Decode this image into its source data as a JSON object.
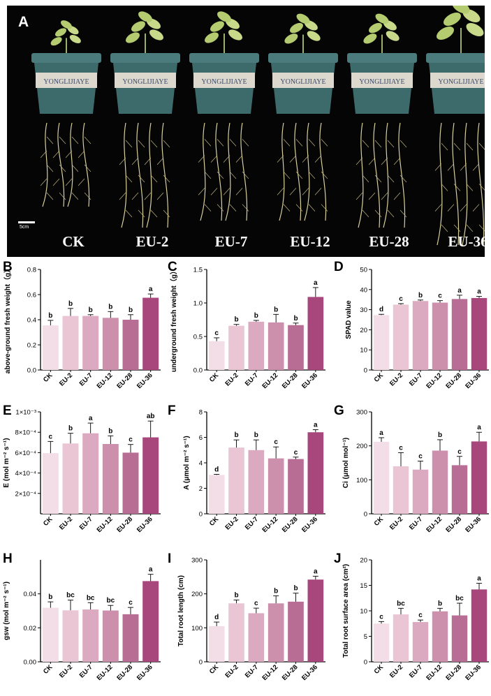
{
  "figure": {
    "panel_a_letter": "A",
    "scale_label": "5cm",
    "treatments": [
      "CK",
      "EU-2",
      "EU-7",
      "EU-12",
      "EU-28",
      "EU-36"
    ],
    "pot_labels": [
      "YONGLIJIAYE",
      "YONGLIJIAYE",
      "YONGLIJIAYE",
      "YONGLIJIAYE",
      "YONGLIJIAYE",
      "YONGLIJIAYE"
    ]
  },
  "colors": {
    "bars": [
      "#f3dde6",
      "#eac5d3",
      "#dcaac0",
      "#cc8fac",
      "#b86d94",
      "#a8477b"
    ],
    "background_photo": "#050505",
    "pot": "#3d6a6b"
  },
  "chart_data": [
    {
      "panel": "B",
      "type": "bar",
      "categories": [
        "CK",
        "EU-2",
        "EU-7",
        "EU-12",
        "EU-28",
        "EU-36"
      ],
      "values": [
        0.355,
        0.43,
        0.43,
        0.415,
        0.4,
        0.575
      ],
      "errors": [
        0.04,
        0.06,
        0.01,
        0.05,
        0.04,
        0.03
      ],
      "letters": [
        "b",
        "b",
        "b",
        "b",
        "b",
        "a"
      ],
      "ylabel": "above-ground fresh weight（g）",
      "ylim": [
        0,
        0.8
      ],
      "yticks": [
        0.0,
        0.2,
        0.4,
        0.6,
        0.8
      ],
      "ytick_labels": [
        "0.0",
        "0.2",
        "0.4",
        "0.6",
        "0.8"
      ]
    },
    {
      "panel": "C",
      "type": "bar",
      "categories": [
        "CK",
        "EU-2",
        "EU-7",
        "EU-12",
        "EU-28",
        "EU-36"
      ],
      "values": [
        0.43,
        0.66,
        0.72,
        0.71,
        0.67,
        1.09
      ],
      "errors": [
        0.05,
        0.02,
        0.02,
        0.12,
        0.03,
        0.14
      ],
      "letters": [
        "c",
        "b",
        "b",
        "b",
        "b",
        "a"
      ],
      "ylabel": "underground fresh weight（g）",
      "ylim": [
        0,
        1.5
      ],
      "yticks": [
        0.0,
        0.5,
        1.0,
        1.5
      ],
      "ytick_labels": [
        "0.0",
        "0.5",
        "1.0",
        "1.5"
      ]
    },
    {
      "panel": "D",
      "type": "bar",
      "categories": [
        "CK",
        "EU-2",
        "EU-7",
        "EU-12",
        "EU-28",
        "EU-36"
      ],
      "values": [
        27.3,
        32.5,
        34.3,
        33.5,
        35.3,
        35.8
      ],
      "errors": [
        0.4,
        0.5,
        0.5,
        1.0,
        1.9,
        0.8
      ],
      "letters": [
        "d",
        "c",
        "b",
        "c",
        "a",
        "a"
      ],
      "ylabel": "SPAD value",
      "ylim": [
        0,
        50
      ],
      "yticks": [
        0,
        10,
        20,
        30,
        40,
        50
      ],
      "ytick_labels": [
        "0",
        "10",
        "20",
        "30",
        "40",
        "50"
      ]
    },
    {
      "panel": "E",
      "type": "bar",
      "categories": [
        "CK",
        "EU-2",
        "EU-7",
        "EU-12",
        "EU-28",
        "EU-36"
      ],
      "values": [
        0.000595,
        0.00069,
        0.00079,
        0.000685,
        0.0006,
        0.00075
      ],
      "errors": [
        0.000115,
        0.0001,
        0.0001,
        8e-05,
        8e-05,
        0.00016
      ],
      "letters": [
        "c",
        "b",
        "a",
        "b",
        "c",
        "ab"
      ],
      "ylabel": "E (mol m⁻² s⁻¹)",
      "ylim": [
        0,
        0.001
      ],
      "yticks": [
        0.0002,
        0.0004,
        0.0006,
        0.0008,
        0.001
      ],
      "ytick_labels": [
        "2×10⁻⁴",
        "4×10⁻⁴",
        "6×10⁻⁴",
        "8×10⁻⁴",
        "1×10⁻³"
      ]
    },
    {
      "panel": "F",
      "type": "bar",
      "categories": [
        "CK",
        "EU-2",
        "EU-7",
        "EU-12",
        "EU-28",
        "EU-36"
      ],
      "values": [
        3.05,
        5.2,
        5.0,
        4.35,
        4.3,
        6.4
      ],
      "errors": [
        0.05,
        0.6,
        0.8,
        0.9,
        0.15,
        0.2
      ],
      "letters": [
        "d",
        "b",
        "b",
        "c",
        "c",
        "a"
      ],
      "ylabel": "A (μmol m⁻² s⁻¹)",
      "ylim": [
        0,
        8
      ],
      "yticks": [
        0,
        2,
        4,
        6,
        8
      ],
      "ytick_labels": [
        "0",
        "2",
        "4",
        "6",
        "8"
      ]
    },
    {
      "panel": "G",
      "type": "bar",
      "categories": [
        "CK",
        "EU-2",
        "EU-7",
        "EU-12",
        "EU-28",
        "EU-36"
      ],
      "values": [
        212,
        140,
        130,
        186,
        143,
        213
      ],
      "errors": [
        12,
        40,
        25,
        32,
        26,
        27
      ],
      "letters": [
        "a",
        "c",
        "c",
        "b",
        "c",
        "a"
      ],
      "ylabel": "Ci (μmol mol⁻¹)",
      "ylim": [
        0,
        300
      ],
      "yticks": [
        0,
        100,
        200,
        300
      ],
      "ytick_labels": [
        "0",
        "100",
        "200",
        "300"
      ]
    },
    {
      "panel": "H",
      "type": "bar",
      "categories": [
        "CK",
        "EU-2",
        "EU-7",
        "EU-12",
        "EU-28",
        "EU-36"
      ],
      "values": [
        0.0318,
        0.0303,
        0.0308,
        0.0302,
        0.028,
        0.0475
      ],
      "errors": [
        0.0035,
        0.006,
        0.004,
        0.003,
        0.004,
        0.004
      ],
      "letters": [
        "b",
        "bc",
        "bc",
        "bc",
        "c",
        "a"
      ],
      "ylabel": "gsw (mol m⁻² s⁻¹)",
      "ylim": [
        0,
        0.06
      ],
      "yticks": [
        0.0,
        0.02,
        0.04
      ],
      "ytick_labels": [
        "0.00",
        "0.02",
        "0.04"
      ]
    },
    {
      "panel": "I",
      "type": "bar",
      "categories": [
        "CK",
        "EU-2",
        "EU-7",
        "EU-12",
        "EU-28",
        "EU-36"
      ],
      "values": [
        105,
        172,
        143,
        172,
        177,
        242
      ],
      "errors": [
        12,
        10,
        15,
        22,
        25,
        10
      ],
      "letters": [
        "d",
        "b",
        "c",
        "b",
        "b",
        "a"
      ],
      "ylabel": "Total root length (cm)",
      "ylim": [
        0,
        300
      ],
      "yticks": [
        0,
        100,
        200,
        300
      ],
      "ytick_labels": [
        "0",
        "100",
        "200",
        "300"
      ]
    },
    {
      "panel": "J",
      "type": "bar",
      "categories": [
        "CK",
        "EU-2",
        "EU-7",
        "EU-12",
        "EU-28",
        "EU-36"
      ],
      "values": [
        7.5,
        9.3,
        7.8,
        9.9,
        9.1,
        14.2
      ],
      "errors": [
        0.4,
        1.2,
        0.4,
        0.6,
        2.4,
        1.2
      ],
      "letters": [
        "c",
        "bc",
        "c",
        "b",
        "bc",
        "a"
      ],
      "ylabel": "Total root surface area (cm²)",
      "ylim": [
        0,
        20
      ],
      "yticks": [
        0,
        5,
        10,
        15,
        20
      ],
      "ytick_labels": [
        "0",
        "5",
        "10",
        "15",
        "20"
      ]
    }
  ]
}
